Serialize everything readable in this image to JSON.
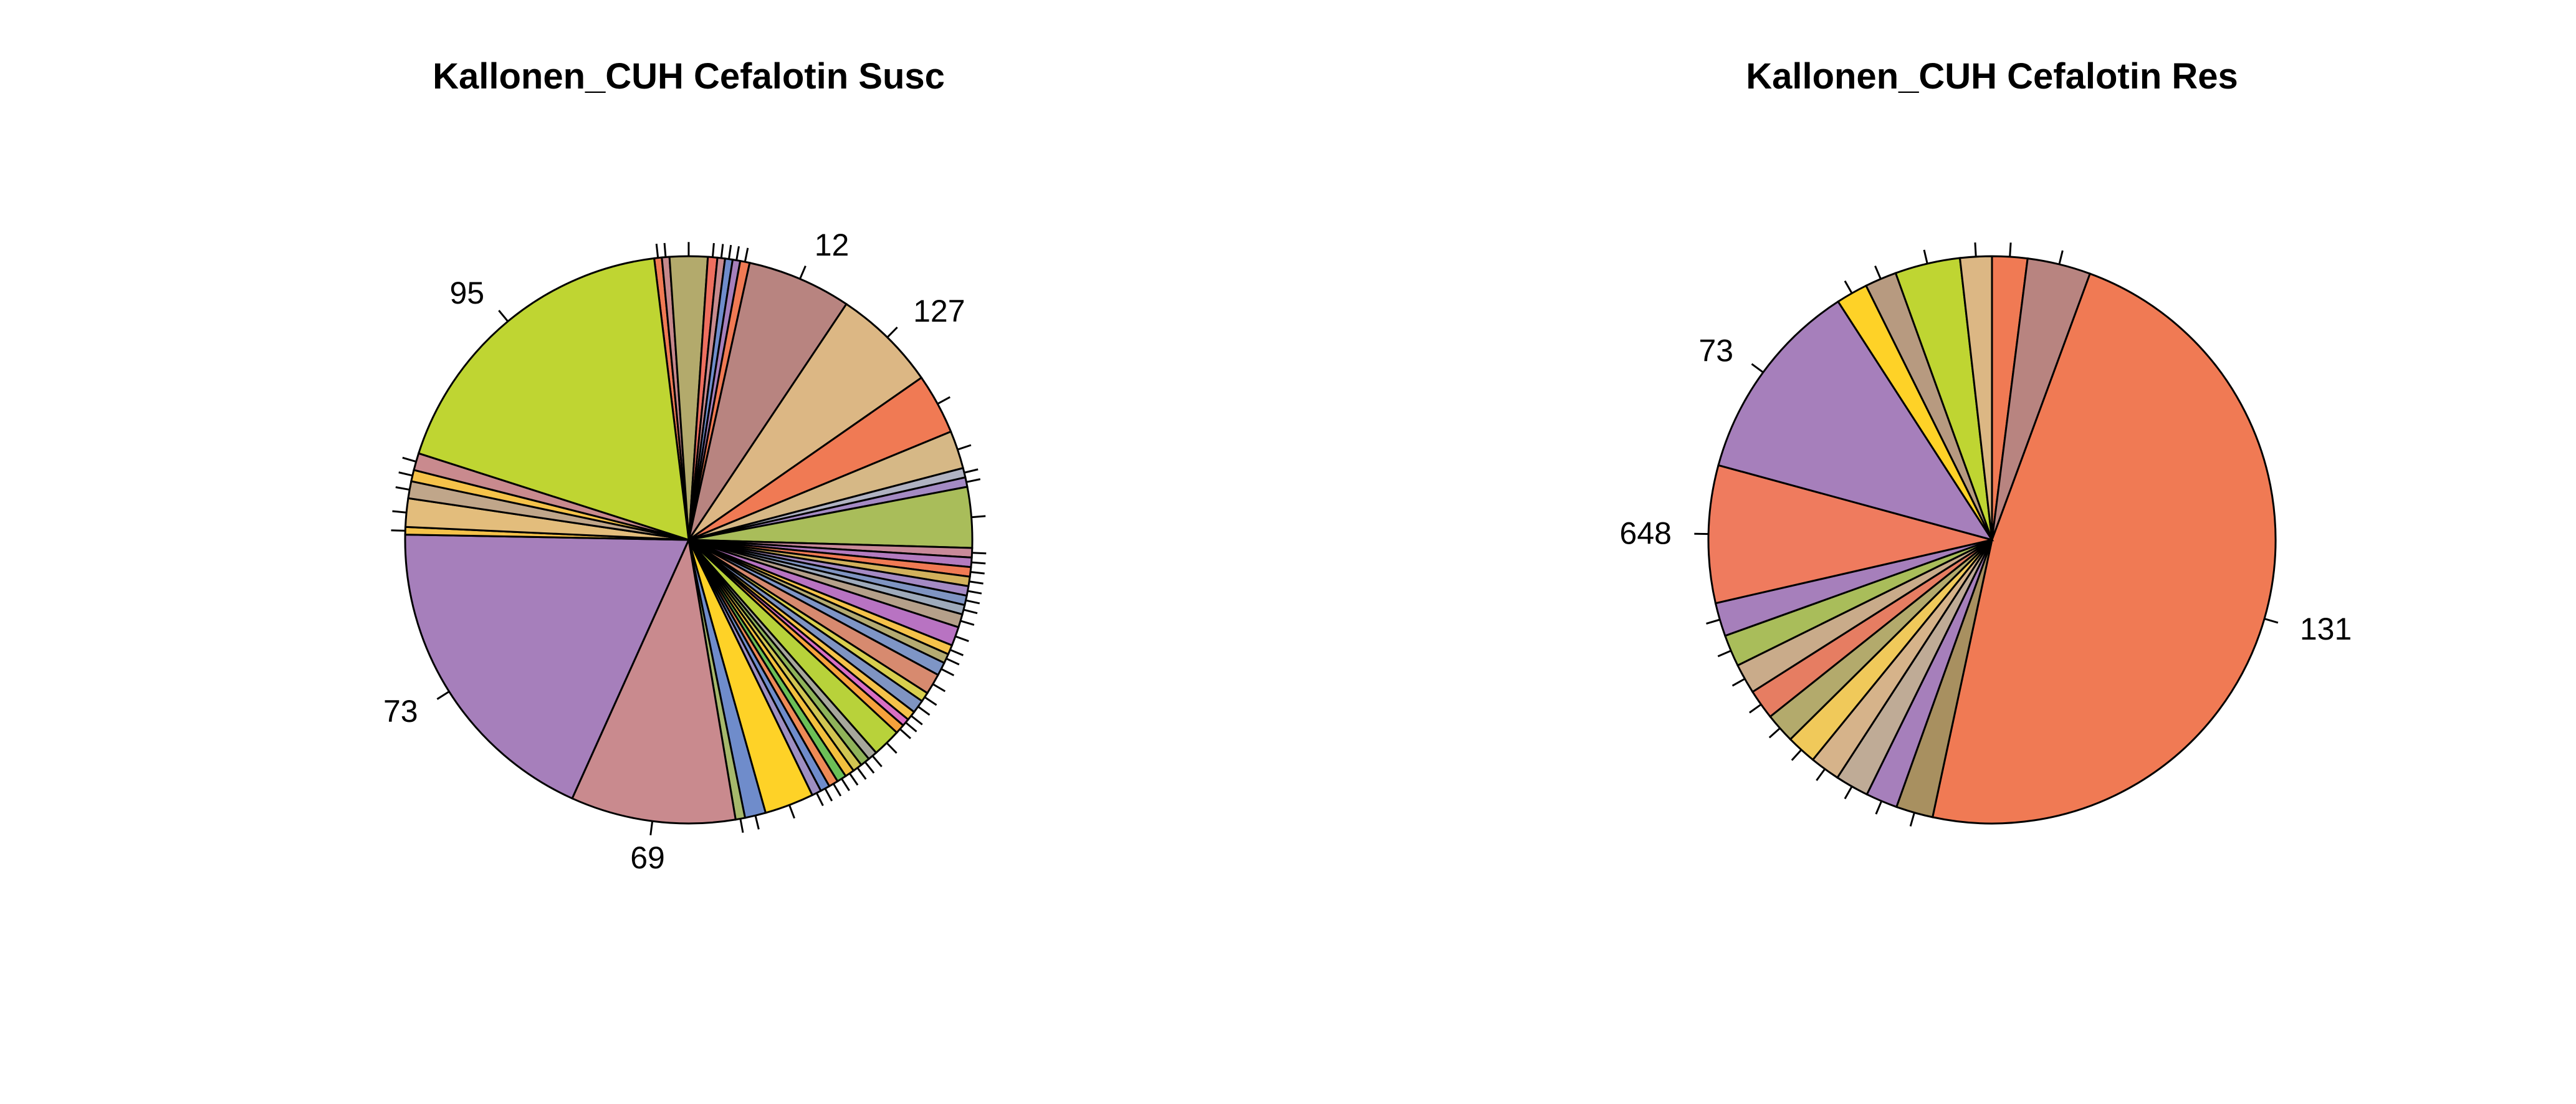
{
  "chart_data": [
    {
      "type": "pie",
      "title": "Kallonen_CUH Cefalotin Susc",
      "slices": [
        {
          "label": "",
          "value": 0.4,
          "color": "#f07a54"
        },
        {
          "label": "",
          "value": 0.4,
          "color": "#c6888c"
        },
        {
          "label": "",
          "value": 2.0,
          "color": "#b3aa6c"
        },
        {
          "label": "",
          "value": 0.5,
          "color": "#ee6f5f"
        },
        {
          "label": "",
          "value": 0.4,
          "color": "#c78a8e"
        },
        {
          "label": "",
          "value": 0.4,
          "color": "#6f8ccb"
        },
        {
          "label": "",
          "value": 0.4,
          "color": "#a67fbb"
        },
        {
          "label": "",
          "value": 0.5,
          "color": "#f07a54"
        },
        {
          "label": "12",
          "value": 5.5,
          "color": "#b88480"
        },
        {
          "label": "127",
          "value": 5.5,
          "color": "#dcb784"
        },
        {
          "label": "",
          "value": 3.2,
          "color": "#f07a54"
        },
        {
          "label": "",
          "value": 2.0,
          "color": "#d6b886"
        },
        {
          "label": "",
          "value": 0.5,
          "color": "#b0b2c2"
        },
        {
          "label": "",
          "value": 0.5,
          "color": "#a48ac4"
        },
        {
          "label": "",
          "value": 3.2,
          "color": "#a9bd5a"
        },
        {
          "label": "",
          "value": 0.5,
          "color": "#c98a9a"
        },
        {
          "label": "",
          "value": 0.5,
          "color": "#b37bbf"
        },
        {
          "label": "",
          "value": 0.5,
          "color": "#f07a54"
        },
        {
          "label": "",
          "value": 0.5,
          "color": "#d2b15c"
        },
        {
          "label": "",
          "value": 0.5,
          "color": "#a48ac4"
        },
        {
          "label": "",
          "value": 0.5,
          "color": "#7f94c2"
        },
        {
          "label": "",
          "value": 0.5,
          "color": "#9eaabb"
        },
        {
          "label": "",
          "value": 0.7,
          "color": "#b5a08a"
        },
        {
          "label": "",
          "value": 1.0,
          "color": "#b873c2"
        },
        {
          "label": "",
          "value": 0.5,
          "color": "#f5c24a"
        },
        {
          "label": "",
          "value": 0.5,
          "color": "#b4ab72"
        },
        {
          "label": "",
          "value": 0.7,
          "color": "#7e95c6"
        },
        {
          "label": "",
          "value": 1.1,
          "color": "#d78a6f"
        },
        {
          "label": "",
          "value": 0.5,
          "color": "#d8cf4e"
        },
        {
          "label": "",
          "value": 0.7,
          "color": "#7f94c2"
        },
        {
          "label": "",
          "value": 0.5,
          "color": "#f5c24a"
        },
        {
          "label": "",
          "value": 0.4,
          "color": "#d96ec4"
        },
        {
          "label": "",
          "value": 0.5,
          "color": "#f6a23c"
        },
        {
          "label": "",
          "value": 1.5,
          "color": "#b8d23a"
        },
        {
          "label": "",
          "value": 0.5,
          "color": "#a7a79c"
        },
        {
          "label": "",
          "value": 0.5,
          "color": "#8fb35a"
        },
        {
          "label": "",
          "value": 0.5,
          "color": "#d1c552"
        },
        {
          "label": "",
          "value": 0.5,
          "color": "#f3c03e"
        },
        {
          "label": "",
          "value": 0.5,
          "color": "#6cbf57"
        },
        {
          "label": "",
          "value": 0.5,
          "color": "#ee8a56"
        },
        {
          "label": "",
          "value": 0.5,
          "color": "#6f8ccb"
        },
        {
          "label": "",
          "value": 0.5,
          "color": "#9e8fc2"
        },
        {
          "label": "",
          "value": 2.6,
          "color": "#fed227"
        },
        {
          "label": "",
          "value": 1.1,
          "color": "#6f8ccb"
        },
        {
          "label": "",
          "value": 0.5,
          "color": "#a6b86c"
        },
        {
          "label": "69",
          "value": 8.7,
          "color": "#c98a8e"
        },
        {
          "label": "73",
          "value": 17.2,
          "color": "#a67fbb"
        },
        {
          "label": "",
          "value": 0.4,
          "color": "#f5c24a"
        },
        {
          "label": "",
          "value": 1.5,
          "color": "#e3bd7c"
        },
        {
          "label": "",
          "value": 0.9,
          "color": "#c0a68a"
        },
        {
          "label": "",
          "value": 0.6,
          "color": "#f5c24a"
        },
        {
          "label": "",
          "value": 0.9,
          "color": "#c98a8e"
        },
        {
          "label": "95",
          "value": 16.8,
          "color": "#bfd532"
        }
      ]
    },
    {
      "type": "pie",
      "title": "Kallonen_CUH Cefalotin Res",
      "slices": [
        {
          "label": "",
          "value": 2.0,
          "color": "#f07a54"
        },
        {
          "label": "",
          "value": 3.6,
          "color": "#b88480"
        },
        {
          "label": "131",
          "value": 47.6,
          "color": "#f07a54"
        },
        {
          "label": "",
          "value": 2.1,
          "color": "#a89060"
        },
        {
          "label": "",
          "value": 1.8,
          "color": "#a67fbb"
        },
        {
          "label": "",
          "value": 1.9,
          "color": "#bfab96"
        },
        {
          "label": "",
          "value": 1.7,
          "color": "#d6b38a"
        },
        {
          "label": "",
          "value": 1.7,
          "color": "#f0c95a"
        },
        {
          "label": "",
          "value": 1.7,
          "color": "#b3aa6c"
        },
        {
          "label": "",
          "value": 1.7,
          "color": "#e67d62"
        },
        {
          "label": "",
          "value": 1.7,
          "color": "#c9ab8a"
        },
        {
          "label": "",
          "value": 1.8,
          "color": "#a9bd5a"
        },
        {
          "label": "",
          "value": 1.9,
          "color": "#a67fbb"
        },
        {
          "label": "648",
          "value": 7.8,
          "color": "#ef7b5e"
        },
        {
          "label": "73",
          "value": 11.6,
          "color": "#a67fbb"
        },
        {
          "label": "",
          "value": 1.8,
          "color": "#fed227"
        },
        {
          "label": "",
          "value": 1.8,
          "color": "#b79a80"
        },
        {
          "label": "",
          "value": 3.7,
          "color": "#bfd532"
        },
        {
          "label": "",
          "value": 1.8,
          "color": "#dcb784"
        }
      ]
    }
  ]
}
